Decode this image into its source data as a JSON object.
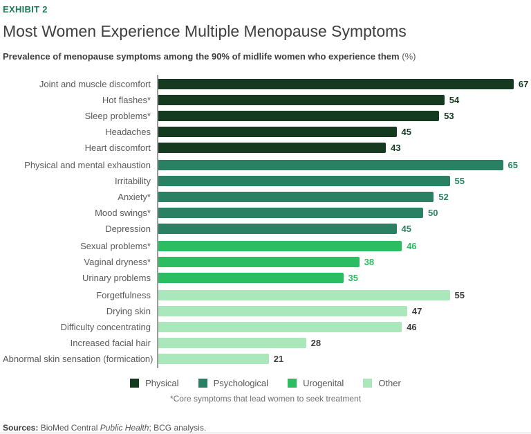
{
  "exhibit_label": "EXHIBIT 2",
  "title": "Most Women Experience Multiple Menopause Symptoms",
  "subtitle": "Prevalence of menopause symptoms among the 90% of midlife women who experience them",
  "subtitle_unit": "(%)",
  "footnote": "*Core symptoms that lead women to seek treatment",
  "sources": {
    "label": "Sources:",
    "pre_italic": " BioMed Central ",
    "italic": "Public Health",
    "post_italic": "; BCG analysis."
  },
  "colors": {
    "physical": "#153a20",
    "psychological": "#2a8062",
    "urogenital": "#2cbd62",
    "other": "#aae7ba",
    "other_value_text": "#3d3d3d",
    "exhibit_green": "#197a56",
    "axis_gray": "#9b9b9b"
  },
  "legend": [
    {
      "label": "Physical",
      "category": "physical"
    },
    {
      "label": "Psychological",
      "category": "psychological"
    },
    {
      "label": "Urogenital",
      "category": "urogenital"
    },
    {
      "label": "Other",
      "category": "other"
    }
  ],
  "chart_data": {
    "type": "bar",
    "orientation": "horizontal",
    "title": "Prevalence of menopause symptoms among the 90% of midlife women who experience them (%)",
    "value_unit": "%",
    "xlim": [
      0,
      70
    ],
    "grid": false,
    "legend_position": "bottom",
    "group_order": [
      "Physical",
      "Psychological",
      "Urogenital",
      "Other"
    ],
    "bars": [
      {
        "label": "Joint and muscle discomfort",
        "value": 67,
        "category": "physical"
      },
      {
        "label": "Hot flashes*",
        "value": 54,
        "category": "physical"
      },
      {
        "label": "Sleep problems*",
        "value": 53,
        "category": "physical"
      },
      {
        "label": "Headaches",
        "value": 45,
        "category": "physical"
      },
      {
        "label": "Heart discomfort",
        "value": 43,
        "category": "physical"
      },
      {
        "label": "Physical and mental exhaustion",
        "value": 65,
        "category": "psychological"
      },
      {
        "label": "Irritability",
        "value": 55,
        "category": "psychological"
      },
      {
        "label": "Anxiety*",
        "value": 52,
        "category": "psychological"
      },
      {
        "label": "Mood swings*",
        "value": 50,
        "category": "psychological"
      },
      {
        "label": "Depression",
        "value": 45,
        "category": "psychological"
      },
      {
        "label": "Sexual problems*",
        "value": 46,
        "category": "urogenital"
      },
      {
        "label": "Vaginal dryness*",
        "value": 38,
        "category": "urogenital"
      },
      {
        "label": "Urinary problems",
        "value": 35,
        "category": "urogenital"
      },
      {
        "label": "Forgetfulness",
        "value": 55,
        "category": "other"
      },
      {
        "label": "Drying skin",
        "value": 47,
        "category": "other"
      },
      {
        "label": "Difficulty concentrating",
        "value": 46,
        "category": "other"
      },
      {
        "label": "Increased facial hair",
        "value": 28,
        "category": "other"
      },
      {
        "label": "Abnormal skin sensation (formication)",
        "value": 21,
        "category": "other"
      }
    ]
  }
}
